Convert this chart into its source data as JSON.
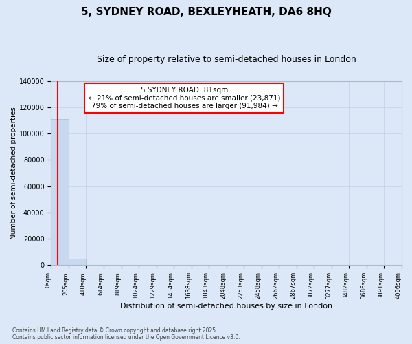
{
  "title_line1": "5, SYDNEY ROAD, BEXLEYHEATH, DA6 8HQ",
  "title_line2": "Size of property relative to semi-detached houses in London",
  "xlabel": "Distribution of semi-detached houses by size in London",
  "ylabel": "Number of semi-detached properties",
  "bar_color": "#c8d8ee",
  "bar_edge_color": "#a8bcd8",
  "annotation_line_color": "red",
  "annotation_text": "5 SYDNEY ROAD: 81sqm\n← 21% of semi-detached houses are smaller (23,871)\n79% of semi-detached houses are larger (91,984) →",
  "property_size": 81,
  "bin_width": 205,
  "bin_labels": [
    "0sqm",
    "205sqm",
    "410sqm",
    "614sqm",
    "819sqm",
    "1024sqm",
    "1229sqm",
    "1434sqm",
    "1638sqm",
    "1843sqm",
    "2048sqm",
    "2253sqm",
    "2458sqm",
    "2662sqm",
    "2867sqm",
    "3072sqm",
    "3277sqm",
    "3482sqm",
    "3686sqm",
    "3891sqm",
    "4096sqm"
  ],
  "counts": [
    111000,
    5000,
    200,
    80,
    40,
    20,
    10,
    6,
    4,
    3,
    2,
    2,
    1,
    1,
    1,
    1,
    1,
    1,
    1,
    1
  ],
  "ylim": [
    0,
    140000
  ],
  "yticks": [
    0,
    20000,
    40000,
    60000,
    80000,
    100000,
    120000,
    140000
  ],
  "footer": "Contains HM Land Registry data © Crown copyright and database right 2025.\nContains public sector information licensed under the Open Government Licence v3.0.",
  "bg_color": "#dce8f8",
  "plot_bg_color": "#dce8f8",
  "grid_color": "#c0d0e8",
  "title_fontsize": 11,
  "subtitle_fontsize": 9
}
